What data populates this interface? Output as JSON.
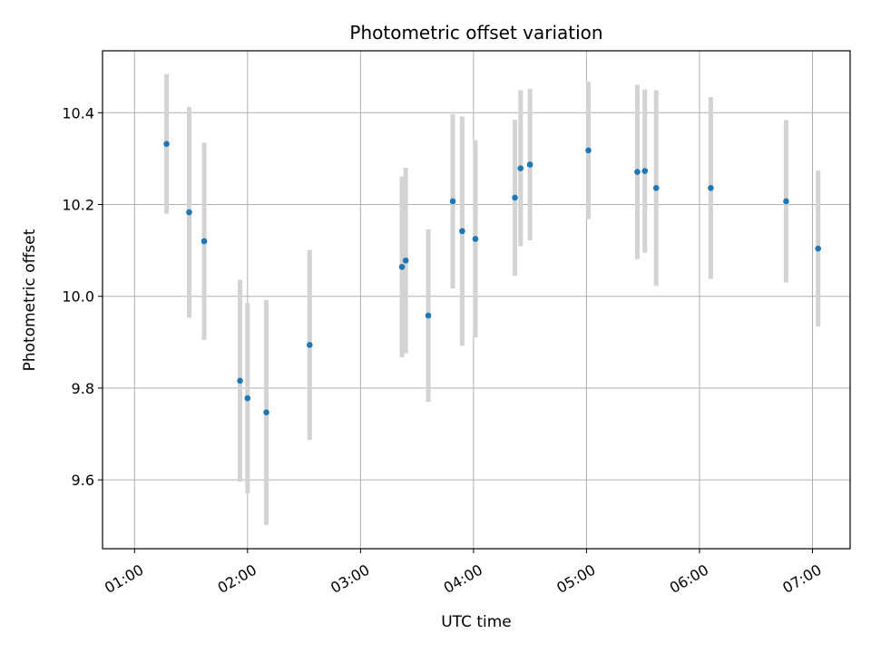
{
  "chart_data": {
    "type": "scatter",
    "title": "Photometric offset variation",
    "xlabel": "UTC time",
    "ylabel": "Photometric offset",
    "x_axis_kind": "time",
    "xlim": [
      "00:43",
      "07:20"
    ],
    "ylim": [
      9.45,
      10.535
    ],
    "x_ticks": [
      "01:00",
      "02:00",
      "03:00",
      "04:00",
      "05:00",
      "06:00",
      "07:00"
    ],
    "y_ticks": [
      9.6,
      9.8,
      10.0,
      10.2,
      10.4
    ],
    "y_tick_labels": [
      "9.6",
      "9.8",
      "10.0",
      "10.2",
      "10.4"
    ],
    "grid": true,
    "legend": "none",
    "colors": {
      "point": "#1f77b4",
      "errorbar": "#d3d3d3",
      "grid": "#b0b0b0",
      "axes": "#000000"
    },
    "points": [
      {
        "x": "01:17",
        "y": 10.332,
        "yerr": 0.152
      },
      {
        "x": "01:29",
        "y": 10.183,
        "yerr": 0.23
      },
      {
        "x": "01:37",
        "y": 10.12,
        "yerr": 0.215
      },
      {
        "x": "01:56",
        "y": 9.816,
        "yerr": 0.22
      },
      {
        "x": "02:00",
        "y": 9.778,
        "yerr": 0.207
      },
      {
        "x": "02:10",
        "y": 9.747,
        "yerr": 0.245
      },
      {
        "x": "02:33",
        "y": 9.894,
        "yerr": 0.207
      },
      {
        "x": "03:22",
        "y": 10.064,
        "yerr": 0.197
      },
      {
        "x": "03:24",
        "y": 10.078,
        "yerr": 0.202
      },
      {
        "x": "03:36",
        "y": 9.958,
        "yerr": 0.188
      },
      {
        "x": "03:49",
        "y": 10.207,
        "yerr": 0.19
      },
      {
        "x": "03:54",
        "y": 10.142,
        "yerr": 0.25
      },
      {
        "x": "04:01",
        "y": 10.125,
        "yerr": 0.215
      },
      {
        "x": "04:22",
        "y": 10.215,
        "yerr": 0.17
      },
      {
        "x": "04:25",
        "y": 10.279,
        "yerr": 0.17
      },
      {
        "x": "04:30",
        "y": 10.287,
        "yerr": 0.165
      },
      {
        "x": "05:01",
        "y": 10.318,
        "yerr": 0.15
      },
      {
        "x": "05:27",
        "y": 10.271,
        "yerr": 0.19
      },
      {
        "x": "05:31",
        "y": 10.273,
        "yerr": 0.178
      },
      {
        "x": "05:37",
        "y": 10.236,
        "yerr": 0.213
      },
      {
        "x": "06:06",
        "y": 10.236,
        "yerr": 0.198
      },
      {
        "x": "06:46",
        "y": 10.207,
        "yerr": 0.177
      },
      {
        "x": "07:03",
        "y": 10.104,
        "yerr": 0.17
      }
    ]
  }
}
